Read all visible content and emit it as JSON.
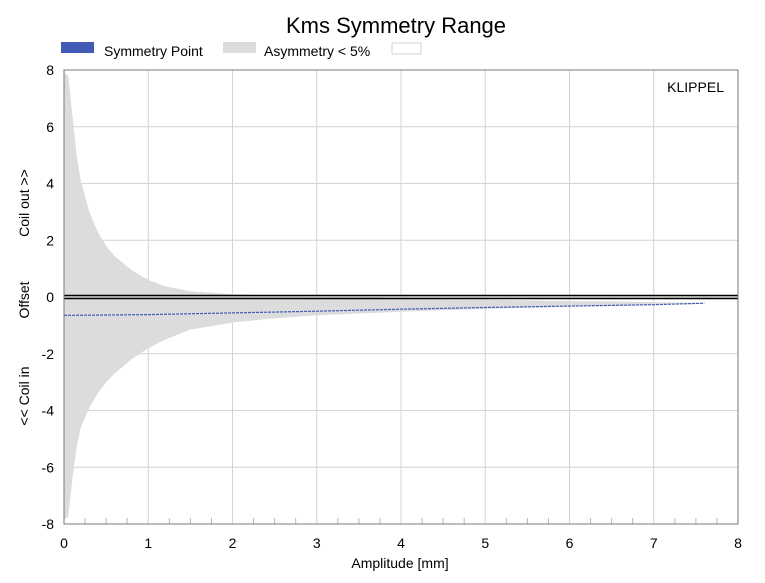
{
  "chart_data": {
    "type": "area",
    "title": "Kms Symmetry Range",
    "xlabel": "Amplitude [mm]",
    "ylabel_parts": [
      "<< Coil in",
      "Offset",
      "Coil out >>"
    ],
    "brand": "KLIPPEL",
    "xlim": [
      0,
      8
    ],
    "ylim": [
      -8,
      8
    ],
    "x_ticks": [
      "0",
      "1",
      "2",
      "3",
      "4",
      "5",
      "6",
      "7",
      "8"
    ],
    "y_ticks": [
      "-8",
      "-6",
      "-4",
      "-2",
      "0",
      "2",
      "4",
      "6",
      "8"
    ],
    "grid": true,
    "legend": {
      "placement": "top",
      "entries": [
        {
          "label": "Symmetry Point",
          "color": "#3f5bb5"
        },
        {
          "label": "Asymmetry < 5%",
          "color": "#dcdcdc"
        },
        {
          "label": "",
          "color": "#ffffff"
        }
      ]
    },
    "series": [
      {
        "name": "Asymmetry < 5%",
        "kind": "band",
        "color": "#dcdcdc",
        "x": [
          0.0,
          0.05,
          0.1,
          0.15,
          0.2,
          0.3,
          0.4,
          0.5,
          0.6,
          0.8,
          1.0,
          1.2,
          1.5,
          2.0,
          2.5,
          3.0,
          3.5,
          4.0,
          4.5,
          5.0,
          5.5,
          6.0,
          6.5,
          7.0,
          7.5,
          7.6
        ],
        "upper": [
          7.9,
          7.8,
          6.4,
          5.0,
          4.1,
          3.0,
          2.3,
          1.8,
          1.45,
          0.95,
          0.6,
          0.38,
          0.2,
          0.1,
          0.05,
          0.02,
          0.0,
          -0.05,
          -0.08,
          -0.1,
          -0.12,
          -0.14,
          -0.16,
          -0.18,
          -0.2,
          -0.2
        ],
        "lower": [
          -7.85,
          -7.75,
          -6.4,
          -5.3,
          -4.6,
          -3.9,
          -3.4,
          -3.0,
          -2.7,
          -2.2,
          -1.8,
          -1.5,
          -1.15,
          -0.9,
          -0.75,
          -0.65,
          -0.58,
          -0.52,
          -0.47,
          -0.42,
          -0.38,
          -0.34,
          -0.31,
          -0.28,
          -0.24,
          -0.22
        ]
      },
      {
        "name": "Symmetry Point",
        "kind": "line",
        "color": "#3f5bb5",
        "x": [
          0.0,
          1.0,
          2.0,
          3.0,
          4.0,
          5.0,
          6.0,
          7.0,
          7.6
        ],
        "y": [
          -0.65,
          -0.62,
          -0.56,
          -0.5,
          -0.43,
          -0.37,
          -0.32,
          -0.27,
          -0.22
        ]
      }
    ]
  }
}
